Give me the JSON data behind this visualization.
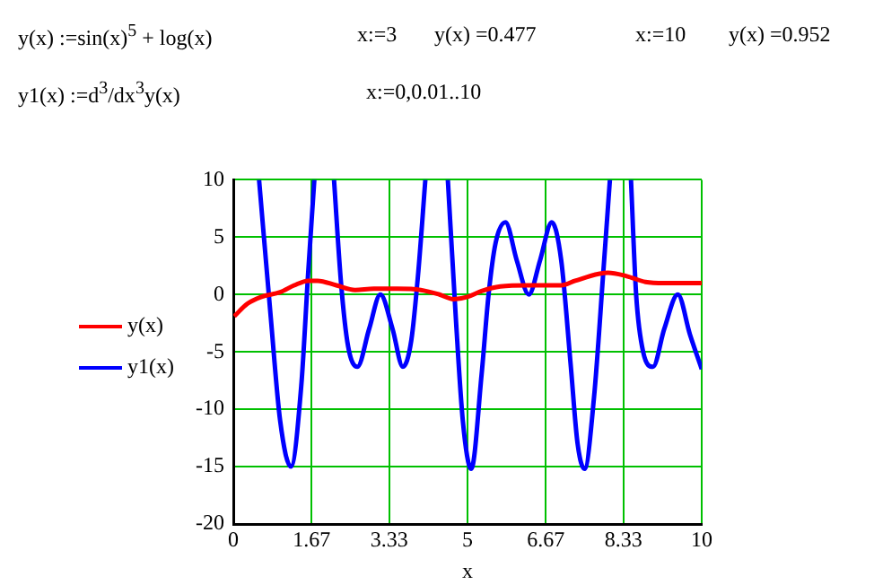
{
  "chart_data": {
    "type": "line",
    "annotations": [
      "y(x) :=sin(x)$^{5}$ + log(x)",
      "x:=3",
      "y(x) =0.477",
      "x:=10",
      "y(x) =0.952",
      "y1(x) :=d$^{3}$/dx$^{3}$y(x)",
      "x:=0,0.01..10"
    ],
    "xlabel": "x",
    "series": [
      {
        "name": "y(x)",
        "color": "#ff0000",
        "x": [
          0.02,
          0.3,
          0.6,
          1,
          1.3,
          1.6,
          1.8,
          2.2,
          2.6,
          3,
          3.5,
          4,
          4.4,
          4.7,
          5,
          5.3,
          5.7,
          6.3,
          7,
          7.3,
          7.8,
          8,
          8.4,
          8.8,
          9.2,
          9.6,
          10
        ],
        "values": [
          -1.9,
          -0.8,
          -0.2,
          0.2,
          0.8,
          1.2,
          1.2,
          0.8,
          0.4,
          0.5,
          0.5,
          0.4,
          0,
          -0.4,
          -0.2,
          0.3,
          0.7,
          0.8,
          0.8,
          1.2,
          1.8,
          1.9,
          1.6,
          1.1,
          1,
          1,
          1
        ]
      },
      {
        "name": "y1(x)",
        "color": "#0000ff",
        "x": [
          0.55,
          0.8,
          1,
          1.23,
          1.45,
          1.6,
          1.73,
          1.9,
          2.15,
          2.3,
          2.45,
          2.65,
          2.9,
          3.14,
          3.4,
          3.62,
          3.8,
          3.95,
          4.1,
          4.35,
          4.58,
          4.75,
          4.9,
          5.08,
          5.3,
          5.45,
          5.6,
          5.81,
          6.05,
          6.31,
          6.55,
          6.8,
          7,
          7.2,
          7.35,
          7.5,
          7.7,
          7.9,
          8.04,
          8.25,
          8.49,
          8.6,
          8.75,
          8.96,
          9.2,
          9.49,
          9.75,
          10
        ],
        "values": [
          10,
          -2,
          -11,
          -15,
          -8,
          2,
          10,
          null,
          10,
          1,
          -4.5,
          -6.3,
          -3,
          0,
          -3,
          -6.3,
          -4,
          2,
          10,
          null,
          10,
          -2,
          -11,
          -15.2,
          -7,
          0,
          4.5,
          6.3,
          3,
          0,
          3,
          6.3,
          3,
          -6,
          -13,
          -15.2,
          -9,
          2,
          10,
          null,
          10,
          0,
          -5,
          -6.3,
          -3,
          0,
          -3.5,
          -6.5
        ]
      }
    ],
    "xlim": [
      0,
      10
    ],
    "xticks": [
      0,
      1.67,
      3.33,
      5,
      6.67,
      8.33,
      10
    ],
    "ylim": [
      -20,
      10
    ],
    "yticks": [
      -20,
      -15,
      -10,
      -5,
      0,
      5,
      10
    ],
    "grid": true,
    "legend": "left"
  }
}
